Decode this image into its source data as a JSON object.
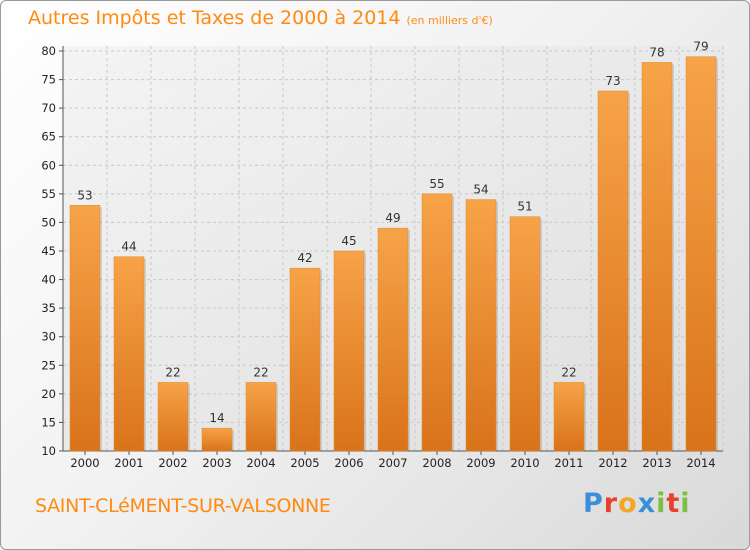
{
  "header": {
    "title": "Autres Impôts et Taxes de 2000 à 2014",
    "unit": "(en milliers d'€)"
  },
  "footer": {
    "commune": "SAINT-CLéMENT-SUR-VALSONNE",
    "brand_letters": [
      "P",
      "r",
      "o",
      "x",
      "i",
      "t",
      "i"
    ],
    "brand_colors": [
      "#3a8fd8",
      "#e8402a",
      "#f5a623",
      "#3a8fd8",
      "#7ac143",
      "#e8402a",
      "#7ac143"
    ]
  },
  "chart_data": {
    "type": "bar",
    "title": "Autres Impôts et Taxes de 2000 à 2014",
    "unit": "(en milliers d'€)",
    "categories": [
      "2000",
      "2001",
      "2002",
      "2003",
      "2004",
      "2005",
      "2006",
      "2007",
      "2008",
      "2009",
      "2010",
      "2011",
      "2012",
      "2013",
      "2014"
    ],
    "values": [
      53,
      44,
      22,
      14,
      22,
      42,
      45,
      49,
      55,
      54,
      51,
      22,
      73,
      78,
      79
    ],
    "ylim": [
      10,
      80
    ],
    "yticks": [
      10,
      15,
      20,
      25,
      30,
      35,
      40,
      45,
      50,
      55,
      60,
      65,
      70,
      75,
      80
    ],
    "grid": true,
    "bar_color_light": "#f7a348",
    "bar_color_dark": "#d9731a"
  }
}
